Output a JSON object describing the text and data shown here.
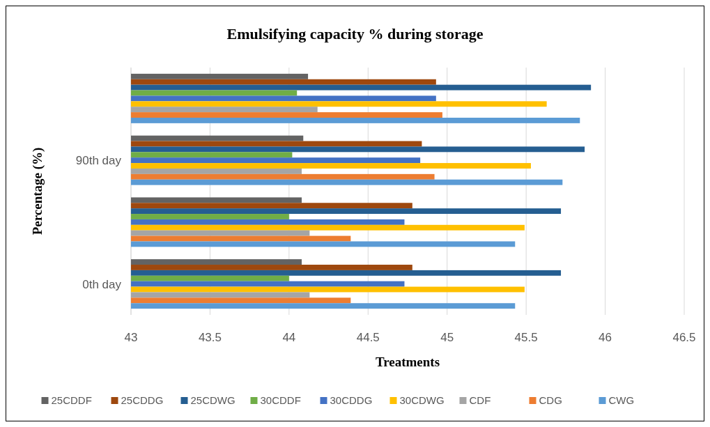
{
  "chart_data": {
    "type": "bar",
    "orientation": "horizontal",
    "title": "Emulsifying capacity % during storage",
    "xlabel": "Treatments",
    "ylabel": "Percentage (%)",
    "categories": [
      null,
      "90th day",
      null,
      "0th day"
    ],
    "series": [
      {
        "name": "25CDDF",
        "color": "#636363",
        "values": [
          44.12,
          44.09,
          44.08,
          44.08
        ]
      },
      {
        "name": "25CDDG",
        "color": "#9e480e",
        "values": [
          44.93,
          44.84,
          44.78,
          44.78
        ]
      },
      {
        "name": "25CDWG",
        "color": "#255e91",
        "values": [
          45.91,
          45.87,
          45.72,
          45.72
        ]
      },
      {
        "name": "30CDDF",
        "color": "#70ad47",
        "values": [
          44.05,
          44.02,
          44.0,
          44.0
        ]
      },
      {
        "name": "30CDDG",
        "color": "#4472c4",
        "values": [
          44.93,
          44.83,
          44.73,
          44.73
        ]
      },
      {
        "name": "30CDWG",
        "color": "#ffc000",
        "values": [
          45.63,
          45.53,
          45.49,
          45.49
        ]
      },
      {
        "name": "CDF",
        "color": "#a5a5a5",
        "values": [
          44.18,
          44.08,
          44.13,
          44.13
        ]
      },
      {
        "name": "CDG",
        "color": "#ed7d31",
        "values": [
          44.97,
          44.92,
          44.39,
          44.39
        ]
      },
      {
        "name": "CWG",
        "color": "#5b9bd5",
        "values": [
          45.84,
          45.73,
          45.43,
          45.43
        ]
      }
    ],
    "xlim": [
      43,
      46.5
    ],
    "xticks": [
      43,
      43.5,
      44,
      44.5,
      45,
      45.5,
      46,
      46.5
    ],
    "grid": "x",
    "legend": "bottom"
  }
}
